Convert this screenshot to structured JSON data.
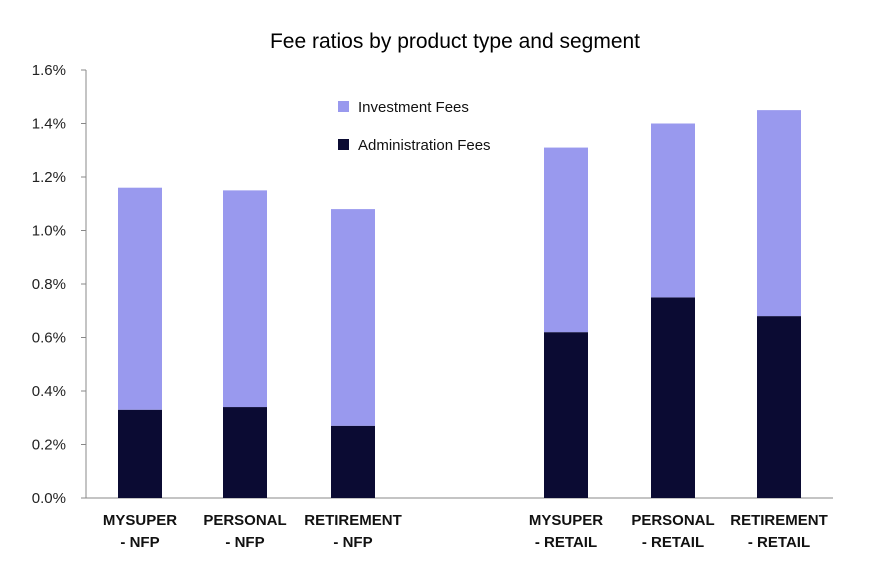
{
  "chart_data": {
    "type": "bar",
    "stacked": true,
    "title": "Fee ratios by product type and segment",
    "xlabel": "",
    "ylabel": "",
    "ylim": [
      0,
      0.016
    ],
    "yticks": [
      0,
      0.002,
      0.004,
      0.006,
      0.008,
      0.01,
      0.012,
      0.014,
      0.016
    ],
    "ytick_labels": [
      "0.0%",
      "0.2%",
      "0.4%",
      "0.6%",
      "0.8%",
      "1.0%",
      "1.2%",
      "1.4%",
      "1.6%"
    ],
    "grid": false,
    "legend_position": "top-center",
    "categories": [
      [
        "MYSUPER",
        "- NFP"
      ],
      [
        "PERSONAL",
        "- NFP"
      ],
      [
        "RETIREMENT",
        "- NFP"
      ],
      [
        "MYSUPER",
        "- RETAIL"
      ],
      [
        "PERSONAL",
        "- RETAIL"
      ],
      [
        "RETIREMENT",
        "- RETAIL"
      ]
    ],
    "series": [
      {
        "name": "Administration Fees",
        "color": "#0b0b33",
        "values": [
          0.0033,
          0.0034,
          0.0027,
          0.0062,
          0.0075,
          0.0068
        ]
      },
      {
        "name": "Investment Fees",
        "color": "#9999ee",
        "values": [
          0.0083,
          0.0081,
          0.0081,
          0.0069,
          0.0065,
          0.0077
        ]
      }
    ],
    "legend_order": [
      "Investment Fees",
      "Administration Fees"
    ]
  }
}
